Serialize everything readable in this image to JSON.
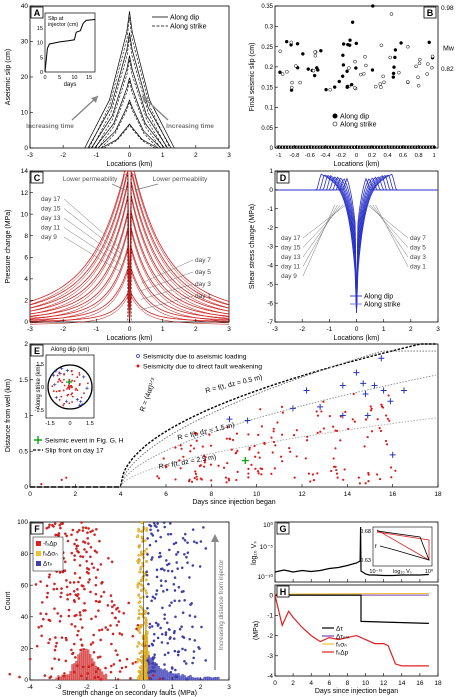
{
  "chart_data": [
    {
      "panel": "A",
      "type": "line",
      "xlabel": "Locations (km)",
      "ylabel": "Aseismic slip (cm)",
      "xlim": [
        -3,
        3
      ],
      "ylim": [
        0,
        40
      ],
      "xticks": [
        "-3",
        "-2",
        "-1",
        "0",
        "1",
        "2",
        "3"
      ],
      "yticks": [
        "0",
        "10",
        "20",
        "30",
        "40"
      ],
      "legend": [
        "Along dip",
        "Along strike"
      ],
      "annotations": [
        "Increasing time",
        "Increasing time"
      ],
      "inset": {
        "ylabel": "Slip at injector (cm)",
        "xlabel": "days",
        "xticks": [
          "0",
          "5",
          "10",
          "15"
        ],
        "yticks": [
          "0",
          "5",
          "10",
          "15"
        ]
      },
      "peak_slip_along_dip": [
        6.8,
        13.5,
        19.8,
        26.0,
        32.5,
        38.5
      ],
      "half_width_along_dip": [
        0.85,
        0.95,
        1.05,
        1.15,
        1.25,
        1.35
      ]
    },
    {
      "panel": "B",
      "type": "scatter",
      "xlabel": "Locations (km)",
      "ylabel": "Final seismic slip (cm)",
      "ylabel2": "Mw",
      "xlim": [
        -1.05,
        1.05
      ],
      "ylim": [
        0,
        0.35
      ],
      "xticks": [
        "-1",
        "-0.8",
        "-0.6",
        "-0.4",
        "-0.2",
        "0",
        "0.2",
        "0.4",
        "0.6",
        "0.8",
        "1"
      ],
      "yticks": [
        "0",
        "0.05",
        "0.1",
        "0.15",
        "0.2",
        "0.25",
        "0.3",
        "0.35"
      ],
      "y2ticks": [
        "0.98",
        "0.82"
      ],
      "legend": [
        "Along dip",
        "Along strike"
      ]
    },
    {
      "panel": "C",
      "type": "line",
      "xlabel": "Locations (km)",
      "ylabel": "Pressure change (MPa)",
      "xlim": [
        -3,
        3
      ],
      "ylim": [
        0,
        14
      ],
      "xticks": [
        "-3",
        "-2",
        "-1",
        "0",
        "1",
        "2",
        "3"
      ],
      "yticks": [
        "0",
        "2",
        "4",
        "6",
        "8",
        "10",
        "12",
        "14"
      ],
      "annotations": [
        "Lower permeability",
        "Lower permeability"
      ],
      "days_left": [
        "day 17",
        "day 15",
        "day 13",
        "day 11",
        "day 9"
      ],
      "days_right": [
        "day 7",
        "day 5",
        "day 3",
        "day 1"
      ],
      "peak_pressure": [
        12.3,
        11.5,
        10.6,
        9.6,
        8.4,
        7.2,
        5.8,
        4.2,
        2.3
      ]
    },
    {
      "panel": "D",
      "type": "line",
      "xlabel": "Locations (km)",
      "ylabel": "Shear stress change (MPa)",
      "xlim": [
        -3,
        3
      ],
      "ylim": [
        -7,
        1
      ],
      "xticks": [
        "-3",
        "-2",
        "-1",
        "0",
        "1",
        "2",
        "3"
      ],
      "yticks": [
        "1",
        "0",
        "-1",
        "-2",
        "-3",
        "-4",
        "-5",
        "-6",
        "-7"
      ],
      "days_left": [
        "day 17",
        "day 15",
        "day 13",
        "day 11",
        "day 9"
      ],
      "days_right": [
        "day 7",
        "day 5",
        "day 3",
        "day 1"
      ],
      "legend": [
        "Along dip",
        "Along strike"
      ]
    },
    {
      "panel": "E",
      "type": "scatter",
      "xlabel": "Days since injection began",
      "ylabel": "Distance from well (km)",
      "xlim": [
        0,
        18
      ],
      "ylim": [
        0,
        2
      ],
      "xticks": [
        "0",
        "2",
        "4",
        "6",
        "8",
        "10",
        "12",
        "14",
        "16",
        "18"
      ],
      "yticks": [
        "0",
        "0.5",
        "1",
        "1.5",
        "2"
      ],
      "legend": [
        "Seismicity due to aseismic loading",
        "Seismicity due to direct fault weakening",
        "Seismic event in Fig. G, H",
        "Slip front on day 17"
      ],
      "curve_labels": [
        "R = (4αt)¹ᐟ²",
        "R = f(t, dz = 0.5 m)",
        "R = f(t, dz = 1.5 m)",
        "R = f(t, dz = 2.5 m)"
      ],
      "inset": {
        "xlabel": "Along dip (km)",
        "ylabel": "Along strike (km)",
        "xticks": [
          "-1.5",
          "0",
          "1.5"
        ],
        "yticks": [
          "1.5",
          "0",
          "-1.5"
        ]
      }
    },
    {
      "panel": "F",
      "type": "histogram",
      "xlabel": "Strength change on secondary faults (MPa)",
      "ylabel": "Count",
      "xlim": [
        -4,
        3
      ],
      "ylim": [
        0,
        100
      ],
      "xticks": [
        "-4",
        "-3",
        "-2",
        "-1",
        "0",
        "1",
        "2",
        "3"
      ],
      "yticks": [
        "0",
        "20",
        "40",
        "60",
        "80",
        "100"
      ],
      "legend": [
        "-fₛΔp",
        "fₛΔσₙ",
        "Δτₙ"
      ],
      "annotation": "Increasing distance from injector"
    },
    {
      "panel": "G",
      "type": "line",
      "ylabel": "log₁₀ Vₛ",
      "xlim": [
        0,
        18
      ],
      "xticks": [
        "0",
        "2",
        "4",
        "6",
        "8",
        "10",
        "12",
        "14",
        "16",
        "18"
      ],
      "yticks": [
        "10⁰",
        "10⁻⁵",
        "10⁻¹⁰"
      ],
      "inset": {
        "xlabel": "log₁₀ Vₛ",
        "xticks": [
          "10⁻¹⁵",
          "10⁰"
        ],
        "yticks": [
          "0.68",
          "0.63"
        ],
        "ylabel": "f"
      }
    },
    {
      "panel": "H",
      "type": "line",
      "xlabel": "Days since injection began",
      "ylabel": "(MPa)",
      "xlim": [
        0,
        18
      ],
      "ylim": [
        -4,
        0.5
      ],
      "xticks": [
        "0",
        "2",
        "4",
        "6",
        "8",
        "10",
        "12",
        "14",
        "16",
        "18"
      ],
      "yticks": [
        "0",
        "-1",
        "-2",
        "-3",
        "-4"
      ],
      "legend": [
        "Δτ",
        "Δτₙₘ",
        "fₛσₙ",
        "fₛΔp"
      ]
    }
  ]
}
